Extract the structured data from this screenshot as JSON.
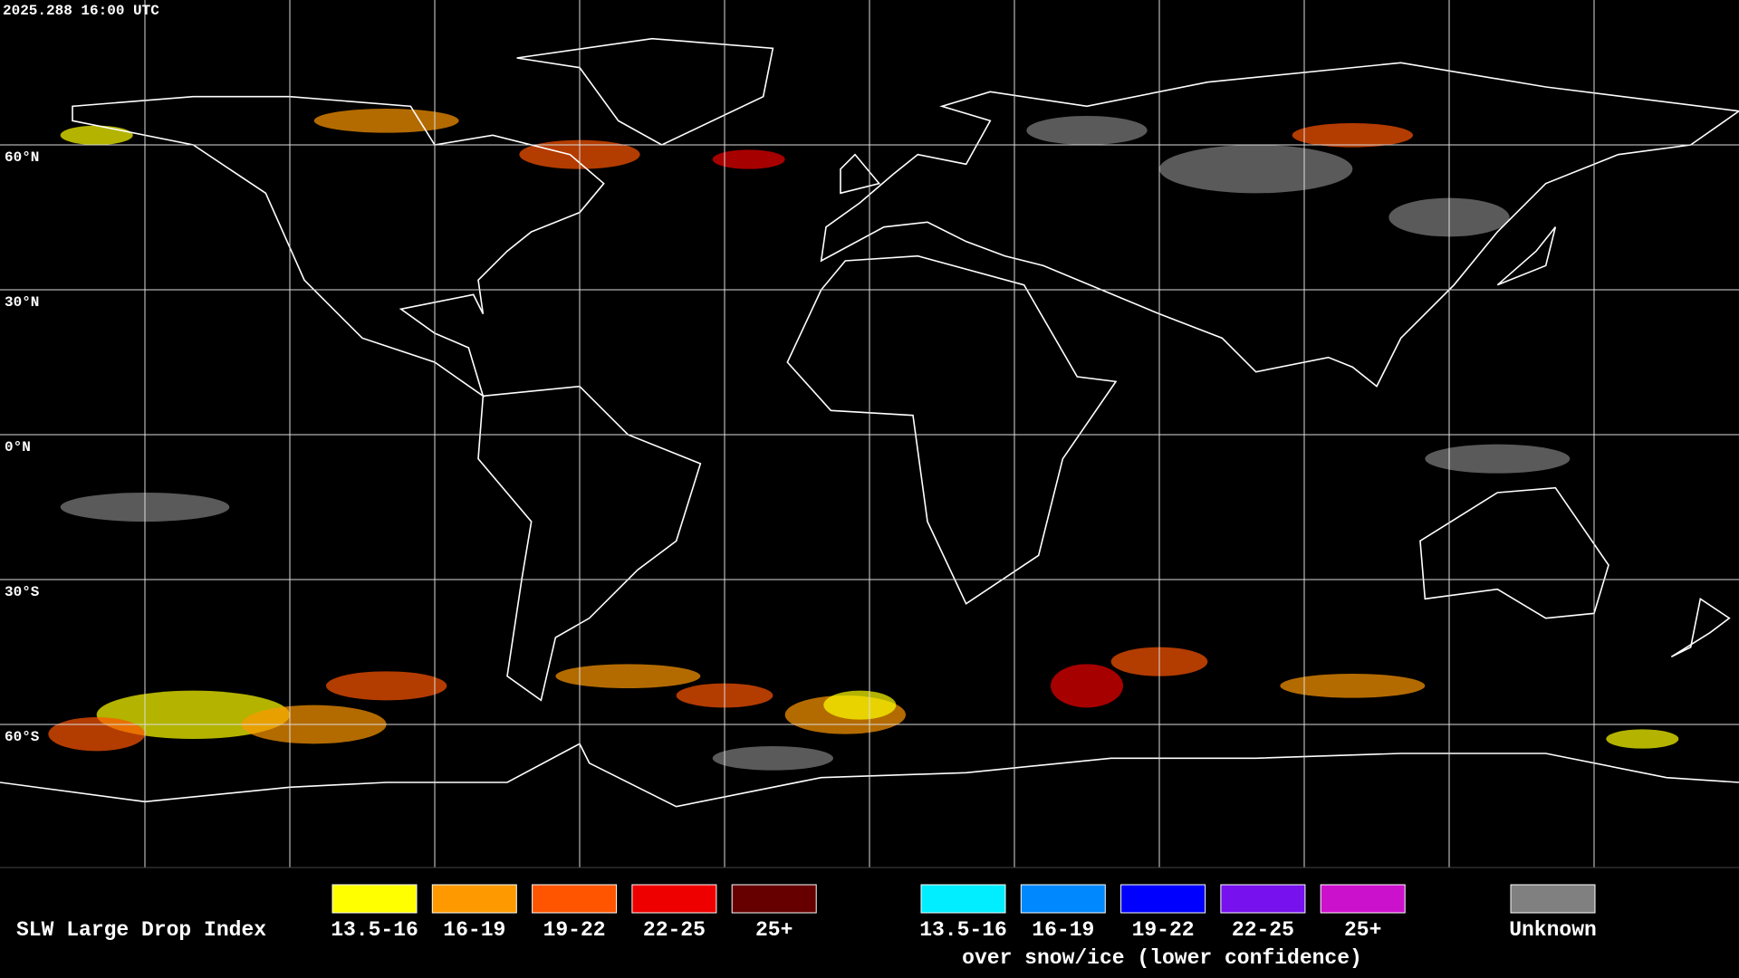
{
  "header": {
    "timestamp": "2025.288 16:00 UTC"
  },
  "map": {
    "lat_labels": [
      "60°N",
      "30°N",
      "0°N",
      "30°S",
      "60°S"
    ]
  },
  "legend": {
    "title": "SLW Large Drop Index",
    "groups": [
      {
        "items": [
          {
            "label": "13.5-16",
            "color": "#ffff00"
          },
          {
            "label": "16-19",
            "color": "#ff9900"
          },
          {
            "label": "19-22",
            "color": "#ff5500"
          },
          {
            "label": "22-25",
            "color": "#ee0000"
          },
          {
            "label": "25+",
            "color": "#660000"
          }
        ]
      },
      {
        "items": [
          {
            "label": "13.5-16",
            "color": "#00eeff"
          },
          {
            "label": "16-19",
            "color": "#0088ff"
          },
          {
            "label": "19-22",
            "color": "#0000ff"
          },
          {
            "label": "22-25",
            "color": "#7711ee"
          },
          {
            "label": "25+",
            "color": "#cc11cc"
          }
        ]
      },
      {
        "items": [
          {
            "label": "Unknown",
            "color": "#808080"
          }
        ]
      }
    ],
    "snow_note": "over snow/ice (lower confidence)"
  }
}
